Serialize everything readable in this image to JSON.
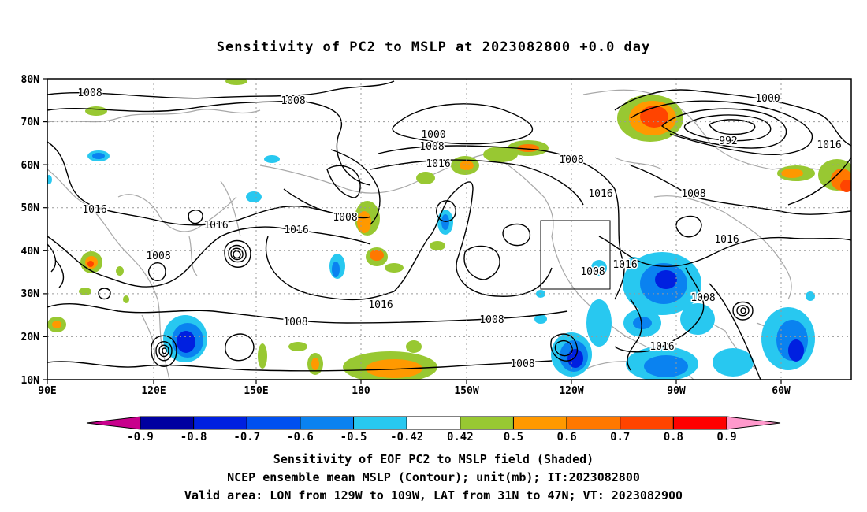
{
  "title": "Sensitivity of PC2 to MSLP at 2023082800 +0.0 day",
  "lat_labels": [
    "80N",
    "70N",
    "60N",
    "50N",
    "40N",
    "30N",
    "20N",
    "10N"
  ],
  "lon_labels": [
    "90E",
    "120E",
    "150E",
    "180",
    "150W",
    "120W",
    "90W",
    "60W"
  ],
  "contour_labels": [
    "1008",
    "1008",
    "1000",
    "1008",
    "1016",
    "1008",
    "1000",
    "992",
    "1016",
    "1016",
    "1008",
    "1016",
    "1008",
    "1016",
    "1016",
    "1008",
    "1016",
    "1016",
    "1008",
    "1016",
    "1008",
    "1008",
    "1008",
    "1016",
    "1008"
  ],
  "colorbar": {
    "labels": [
      "-0.9",
      "-0.8",
      "-0.7",
      "-0.6",
      "-0.5",
      "-0.42",
      "0.42",
      "0.5",
      "0.6",
      "0.7",
      "0.8",
      "0.9"
    ],
    "colors": [
      "#0000a0",
      "#0020e0",
      "#0050f0",
      "#0a82f0",
      "#28c8f0",
      "#ffffff",
      "#98c832",
      "#ff9900",
      "#ff7800",
      "#ff4400",
      "#ff0000"
    ],
    "left_end_color": "#c8008c",
    "right_end_color": "#ff99cc"
  },
  "footer": {
    "line1": "Sensitivity of EOF PC2 to MSLP field (Shaded)",
    "line2": "NCEP ensemble mean MSLP (Contour); unit(mb); IT:2023082800",
    "line3": "Valid area: LON from 129W to 109W, LAT from 31N to 47N; VT: 2023082900"
  }
}
